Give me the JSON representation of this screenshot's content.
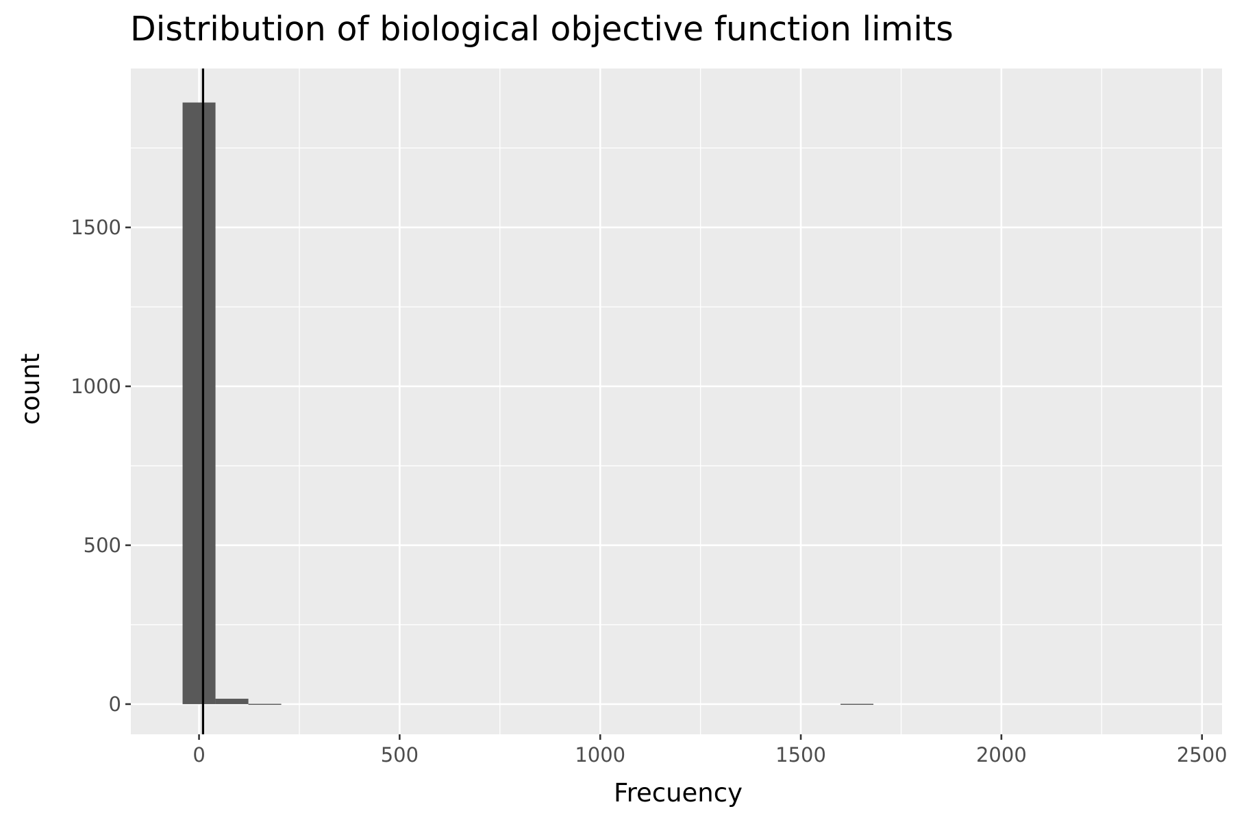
{
  "chart_data": {
    "type": "bar",
    "title": "Distribution of biological objective function limits",
    "xlabel": "Frecuency",
    "ylabel": "count",
    "xlim": [
      -170,
      2550
    ],
    "ylim": [
      -95,
      2000
    ],
    "x_ticks": [
      0,
      500,
      1000,
      1500,
      2000,
      2500
    ],
    "x_tick_labels": [
      "0",
      "500",
      "1000",
      "1500",
      "2000",
      "2500"
    ],
    "y_ticks": [
      0,
      500,
      1000,
      1500
    ],
    "y_tick_labels": [
      "0",
      "500",
      "1000",
      "1500"
    ],
    "bin_width": 82,
    "bins": [
      {
        "x_start": -41,
        "x_end": 41,
        "count": 1893
      },
      {
        "x_start": 41,
        "x_end": 123,
        "count": 17
      },
      {
        "x_start": 123,
        "x_end": 205,
        "count": 1
      },
      {
        "x_start": 1599,
        "x_end": 1681,
        "count": 1
      }
    ],
    "vline": {
      "x": 10,
      "color": "#000000"
    },
    "grid": true,
    "colors": {
      "panel_background": "#ebebeb",
      "grid": "#ffffff",
      "bar_fill": "#595959",
      "vline": "#000000",
      "tick_label": "#4d4d4d",
      "axis_title": "#000000"
    }
  }
}
